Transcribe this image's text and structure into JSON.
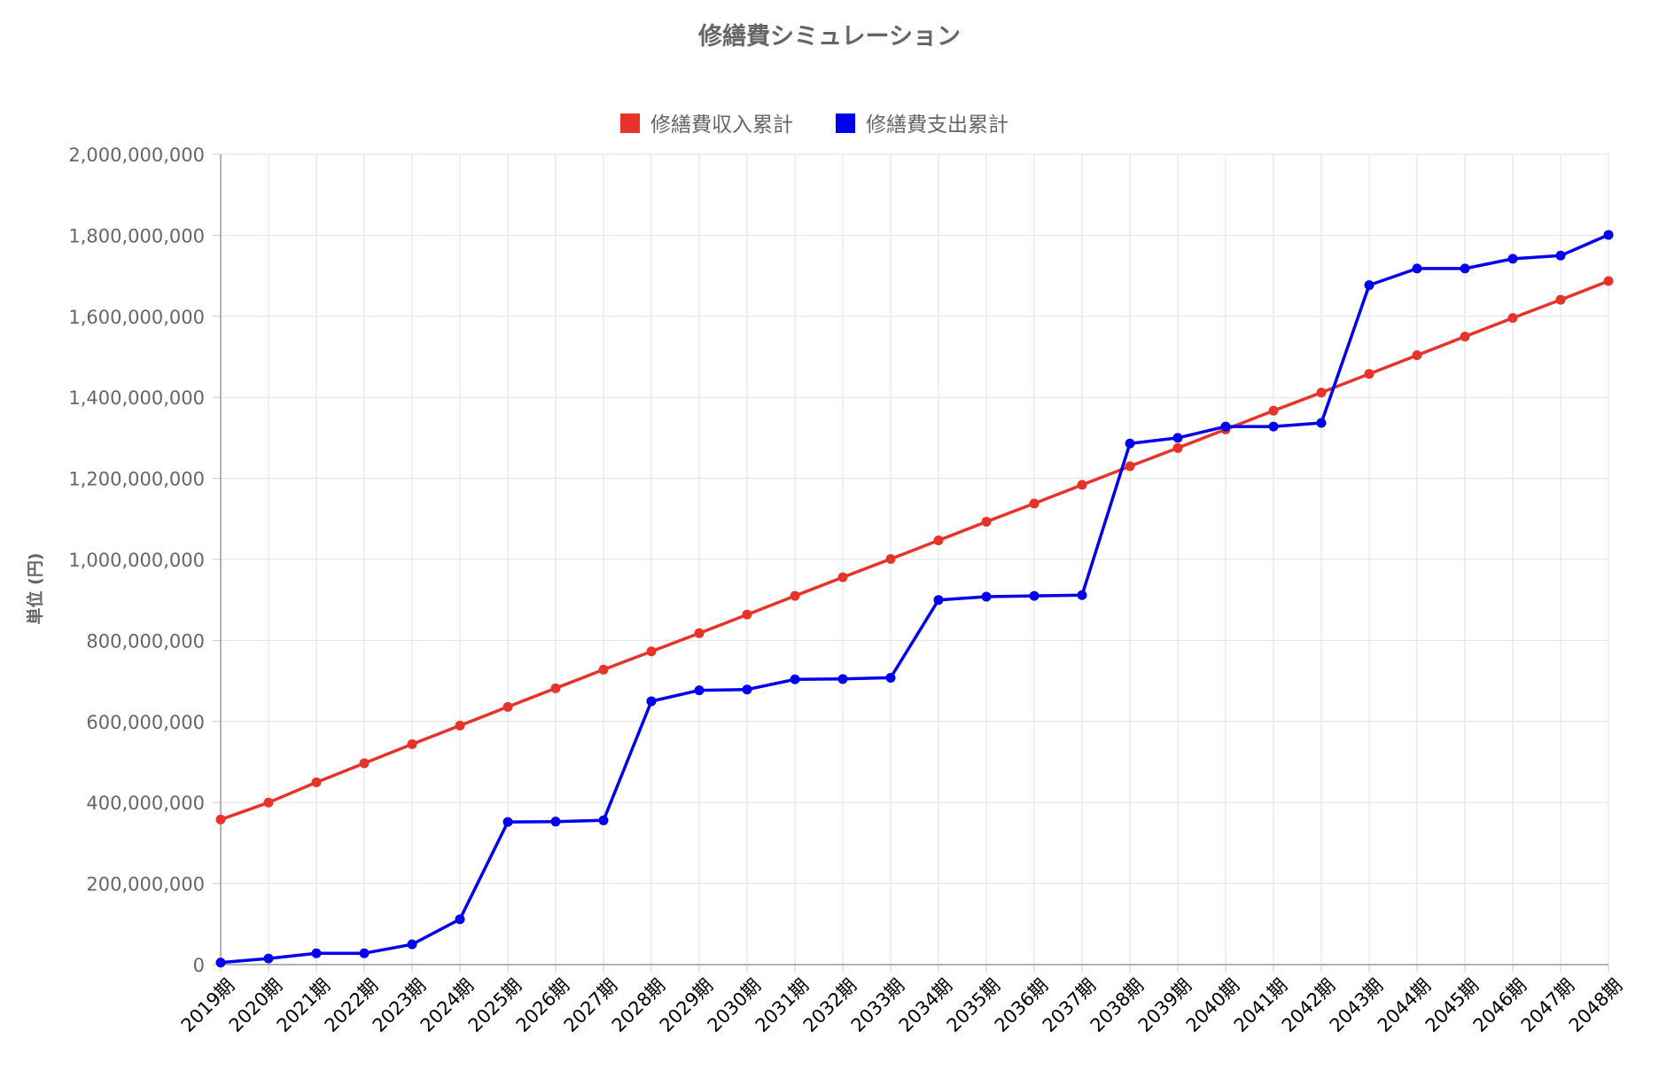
{
  "chart_data": {
    "type": "line",
    "title": "修繕費シミュレーション",
    "ylabel": "単位 (円)",
    "xlabel": "",
    "ylim": [
      0,
      2000000000
    ],
    "yticks": [
      0,
      200000000,
      400000000,
      600000000,
      800000000,
      1000000000,
      1200000000,
      1400000000,
      1600000000,
      1800000000,
      2000000000
    ],
    "ytick_labels": [
      "0",
      "200,000,000",
      "400,000,000",
      "600,000,000",
      "800,000,000",
      "1,000,000,000",
      "1,200,000,000",
      "1,400,000,000",
      "1,600,000,000",
      "1,800,000,000",
      "2,000,000,000"
    ],
    "grid": true,
    "legend_position": "top-center",
    "categories": [
      "2019期",
      "2020期",
      "2021期",
      "2022期",
      "2023期",
      "2024期",
      "2025期",
      "2026期",
      "2027期",
      "2028期",
      "2029期",
      "2030期",
      "2031期",
      "2032期",
      "2033期",
      "2034期",
      "2035期",
      "2036期",
      "2037期",
      "2038期",
      "2039期",
      "2040期",
      "2041期",
      "2042期",
      "2043期",
      "2044期",
      "2045期",
      "2046期",
      "2047期",
      "2048期"
    ],
    "series": [
      {
        "name": "修繕費収入累計",
        "color": "#e8332a",
        "values": [
          358000000,
          400000000,
          450000000,
          497000000,
          544000000,
          590000000,
          636000000,
          682000000,
          728000000,
          773000000,
          818000000,
          864000000,
          910000000,
          956000000,
          1001000000,
          1047000000,
          1093000000,
          1138000000,
          1184000000,
          1230000000,
          1275000000,
          1321000000,
          1367000000,
          1412000000,
          1458000000,
          1504000000,
          1550000000,
          1596000000,
          1641000000,
          1687000000
        ]
      },
      {
        "name": "修繕費支出累計",
        "color": "#0000ee",
        "values": [
          5000000,
          15000000,
          28000000,
          28000000,
          50000000,
          112000000,
          352000000,
          353000000,
          356000000,
          650000000,
          677000000,
          679000000,
          704000000,
          705000000,
          708000000,
          900000000,
          908000000,
          910000000,
          912000000,
          1286000000,
          1300000000,
          1328000000,
          1328000000,
          1337000000,
          1677000000,
          1718000000,
          1718000000,
          1742000000,
          1750000000,
          1801000000
        ]
      }
    ]
  }
}
